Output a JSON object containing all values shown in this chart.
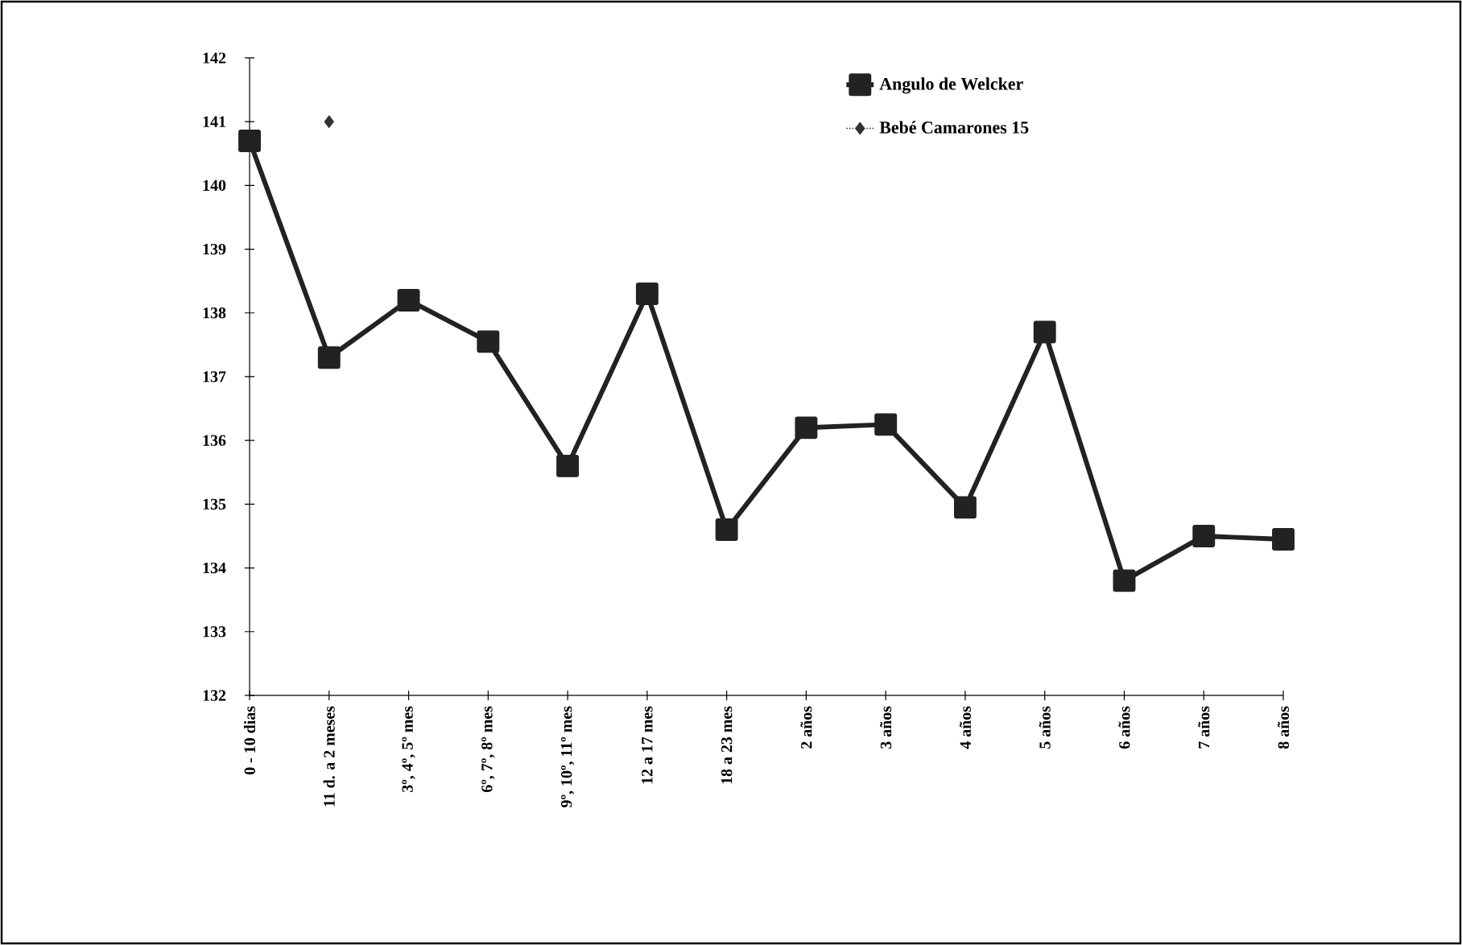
{
  "chart_data": {
    "type": "line",
    "categories": [
      "0 - 10 dias",
      "11 d. a 2 meses",
      "3º, 4º, 5º mes",
      "6º, 7º, 8º mes",
      "9º, 10º, 11º mes",
      "12 a 17 mes",
      "18 a 23 mes",
      "2 años",
      "3 años",
      "4 años",
      "5 años",
      "6 años",
      "7 años",
      "8 años"
    ],
    "series": [
      {
        "name": "Angulo de Welcker",
        "color": "#222222",
        "marker": "square",
        "line_style": "solid",
        "values": [
          140.7,
          137.3,
          138.2,
          137.55,
          135.6,
          138.3,
          134.6,
          136.2,
          136.25,
          134.95,
          137.7,
          133.8,
          134.5,
          134.45
        ]
      },
      {
        "name": "Bebé Camarones 15",
        "color": "#333333",
        "marker": "diamond",
        "line_style": "dotted",
        "values": [
          null,
          141.0,
          null,
          null,
          null,
          null,
          null,
          null,
          null,
          null,
          null,
          null,
          null,
          null
        ]
      }
    ],
    "ylim": [
      132,
      142
    ],
    "yticks": [
      132,
      133,
      134,
      135,
      136,
      137,
      138,
      139,
      140,
      141,
      142
    ],
    "grid": false,
    "legend": "top right"
  }
}
